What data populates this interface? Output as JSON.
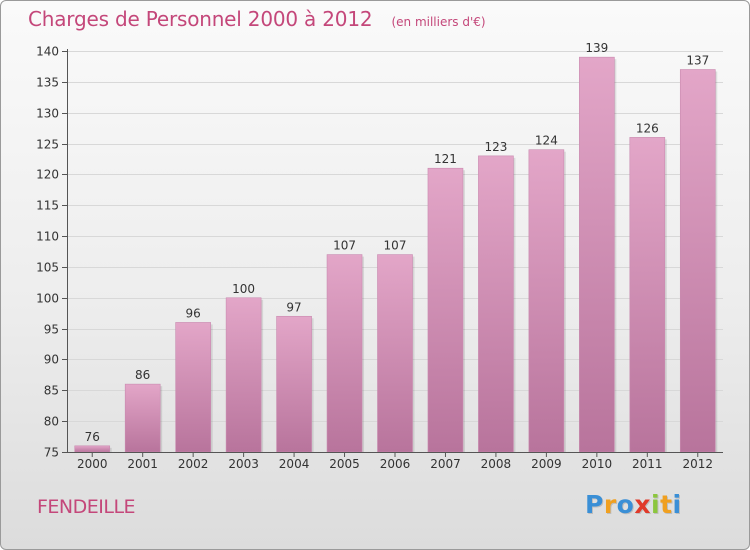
{
  "chart_data": {
    "type": "bar",
    "title": "Charges de Personnel 2000 à 2012",
    "subtitle": "(en milliers d'€)",
    "categories": [
      "2000",
      "2001",
      "2002",
      "2003",
      "2004",
      "2005",
      "2006",
      "2007",
      "2008",
      "2009",
      "2010",
      "2011",
      "2012"
    ],
    "values": [
      76,
      86,
      96,
      100,
      97,
      107,
      107,
      121,
      123,
      124,
      139,
      126,
      137
    ],
    "ylim": [
      75,
      140
    ],
    "yticks": [
      75,
      80,
      85,
      90,
      95,
      100,
      105,
      110,
      115,
      120,
      125,
      130,
      135,
      140
    ],
    "grid": true,
    "bar_color": "#d992b8",
    "bar_color_top": "#e3a6c8",
    "bar_color_bottom": "#b8749c"
  },
  "location": "FENDEILLE",
  "logo": {
    "letters": [
      "P",
      "r",
      "o",
      "x",
      "i",
      "t",
      "i"
    ],
    "colors": [
      "#3a8fd6",
      "#f0a020",
      "#3a8fd6",
      "#e03a2a",
      "#8cc63e",
      "#f0a020",
      "#3a8fd6"
    ]
  }
}
